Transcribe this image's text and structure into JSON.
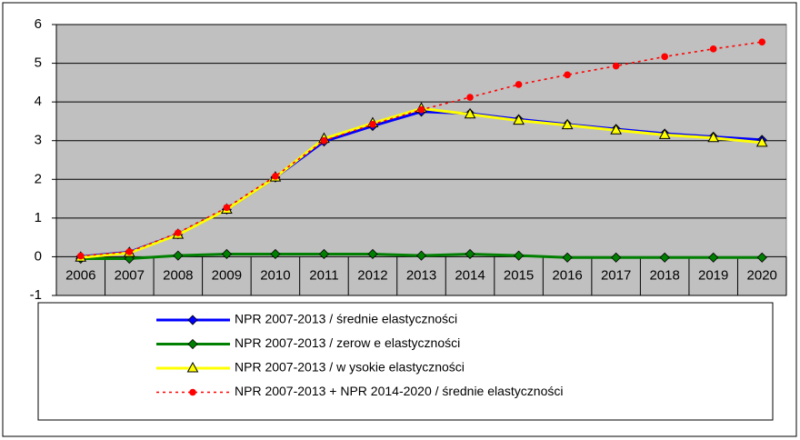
{
  "chart_data": {
    "type": "line",
    "categories": [
      "2006",
      "2007",
      "2008",
      "2009",
      "2010",
      "2011",
      "2012",
      "2013",
      "2014",
      "2015",
      "2016",
      "2017",
      "2018",
      "2019",
      "2020"
    ],
    "series": [
      {
        "name": "NPR 2007-2013 / średnie elastyczności",
        "color": "#0000ff",
        "marker": "diamond",
        "dash": false,
        "values": [
          0,
          0.12,
          0.58,
          1.22,
          2.05,
          2.98,
          3.38,
          3.75,
          3.7,
          3.55,
          3.42,
          3.3,
          3.18,
          3.1,
          3.02
        ]
      },
      {
        "name": "NPR 2007-2013 / zerow e elastyczności",
        "color": "#008000",
        "marker": "diamond",
        "dash": false,
        "values": [
          -0.05,
          -0.05,
          0.03,
          0.07,
          0.07,
          0.07,
          0.07,
          0.03,
          0.07,
          0.03,
          -0.02,
          -0.02,
          -0.02,
          -0.02,
          -0.02
        ]
      },
      {
        "name": "NPR 2007-2013 / w ysokie elastyczności",
        "color": "#ffff00",
        "marker": "triangle",
        "dash": false,
        "values": [
          -0.02,
          0.1,
          0.57,
          1.22,
          2.05,
          3.05,
          3.45,
          3.83,
          3.68,
          3.52,
          3.4,
          3.27,
          3.15,
          3.07,
          2.95
        ]
      },
      {
        "name": "NPR 2007-2013 + NPR 2014-2020 / średnie elastyczności",
        "color": "#ff0000",
        "marker": "circle",
        "dash": true,
        "values": [
          0.02,
          0.13,
          0.62,
          1.27,
          2.08,
          3.0,
          3.42,
          3.8,
          4.12,
          4.45,
          4.7,
          4.93,
          5.17,
          5.37,
          5.55
        ]
      }
    ],
    "ylim": [
      -1,
      6
    ],
    "yticks": [
      -1,
      0,
      1,
      2,
      3,
      4,
      5,
      6
    ],
    "grid": true,
    "legend": "bottom"
  }
}
